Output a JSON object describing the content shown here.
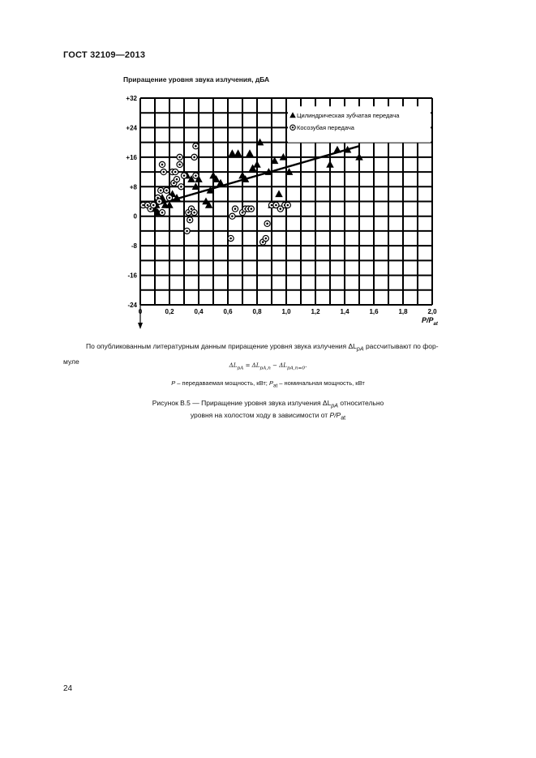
{
  "header": {
    "title": "ГОСТ 32109—2013"
  },
  "chart_data": {
    "type": "scatter",
    "ylabel": "Приращение уровня звука излучения, дБА",
    "xlabel": "P/P",
    "xlabel_sub": "at",
    "xlim": [
      0,
      2.0
    ],
    "ylim": [
      -24,
      32
    ],
    "x_ticks": [
      "0",
      "0,2",
      "0,4",
      "0,6",
      "0,8",
      "1,0",
      "1,2",
      "1,4",
      "1,6",
      "1,8",
      "2,0"
    ],
    "y_ticks": [
      "+32",
      "+24",
      "+16",
      "+8",
      "0",
      "-8",
      "-16",
      "-24"
    ],
    "grid": true,
    "legend_position": "top-right",
    "series": [
      {
        "name": "Цилиндрическая зубчатая передача",
        "marker": "triangle",
        "points": [
          [
            0.1,
            2
          ],
          [
            0.11,
            3
          ],
          [
            0.12,
            1
          ],
          [
            0.15,
            5
          ],
          [
            0.17,
            3
          ],
          [
            0.2,
            3
          ],
          [
            0.22,
            6
          ],
          [
            0.25,
            5
          ],
          [
            0.32,
            11
          ],
          [
            0.35,
            10
          ],
          [
            0.38,
            8
          ],
          [
            0.4,
            10
          ],
          [
            0.45,
            4
          ],
          [
            0.47,
            3
          ],
          [
            0.48,
            7
          ],
          [
            0.5,
            11
          ],
          [
            0.52,
            10
          ],
          [
            0.55,
            9
          ],
          [
            0.63,
            17
          ],
          [
            0.67,
            17
          ],
          [
            0.7,
            11
          ],
          [
            0.72,
            10
          ],
          [
            0.75,
            17
          ],
          [
            0.77,
            13
          ],
          [
            0.8,
            14
          ],
          [
            0.82,
            20
          ],
          [
            0.88,
            12
          ],
          [
            0.9,
            3
          ],
          [
            0.92,
            15
          ],
          [
            0.95,
            6
          ],
          [
            0.98,
            16
          ],
          [
            1.02,
            12
          ],
          [
            1.3,
            14
          ],
          [
            1.35,
            18
          ],
          [
            1.42,
            18
          ],
          [
            1.5,
            16
          ]
        ]
      },
      {
        "name": "Косозубая передача",
        "marker": "circle",
        "points": [
          [
            0.02,
            3
          ],
          [
            0.05,
            3
          ],
          [
            0.07,
            2
          ],
          [
            0.09,
            3
          ],
          [
            0.12,
            5
          ],
          [
            0.13,
            4
          ],
          [
            0.14,
            7
          ],
          [
            0.15,
            1
          ],
          [
            0.15,
            14
          ],
          [
            0.16,
            12
          ],
          [
            0.18,
            7
          ],
          [
            0.2,
            5
          ],
          [
            0.22,
            12
          ],
          [
            0.23,
            9
          ],
          [
            0.24,
            12
          ],
          [
            0.25,
            10
          ],
          [
            0.27,
            16
          ],
          [
            0.27,
            14
          ],
          [
            0.28,
            8
          ],
          [
            0.3,
            11
          ],
          [
            0.32,
            -4
          ],
          [
            0.33,
            1
          ],
          [
            0.34,
            -1
          ],
          [
            0.35,
            2
          ],
          [
            0.37,
            1
          ],
          [
            0.37,
            16
          ],
          [
            0.38,
            19
          ],
          [
            0.38,
            11
          ],
          [
            0.62,
            -6
          ],
          [
            0.63,
            0
          ],
          [
            0.65,
            2
          ],
          [
            0.7,
            1
          ],
          [
            0.72,
            2
          ],
          [
            0.74,
            2
          ],
          [
            0.76,
            2
          ],
          [
            0.84,
            -7
          ],
          [
            0.86,
            -6
          ],
          [
            0.87,
            -2
          ],
          [
            0.9,
            3
          ],
          [
            0.93,
            3
          ],
          [
            0.96,
            2
          ],
          [
            0.99,
            3
          ],
          [
            1.01,
            3
          ]
        ]
      }
    ],
    "trend_line": [
      [
        0.1,
        3
      ],
      [
        1.5,
        19
      ]
    ]
  },
  "text": {
    "para_line1": "По опубликованным литературным данным приращение уровня звука излучения ΔL",
    "para_sub": "pA",
    "para_line1_end": " рассчитывают по фор-",
    "para_line2": "муле",
    "formula": "ΔL",
    "formula_sub": "pA",
    "formula_rest": " = ΔL",
    "formula_sub2": "pA,n",
    "formula_rest2": " − ΔL",
    "formula_sub3": "pA,n=0",
    "formula_end": ".",
    "defs_p": "P",
    "defs_p_text": " – передаваемая мощность, кВт; ",
    "defs_pat": "P",
    "defs_pat_sub": "at",
    "defs_pat_text": " – номинальная мощность, кВт",
    "caption_line1": "Рисунок В.5 — Приращение уровня звука излучения ΔL",
    "caption_sub": "pA",
    "caption_line1_end": " относительно",
    "caption_line2": "уровня на холостом ходу в зависимости от ",
    "caption_var": "P/P",
    "caption_var_sub": "at"
  },
  "footer": {
    "page_number": "24"
  }
}
